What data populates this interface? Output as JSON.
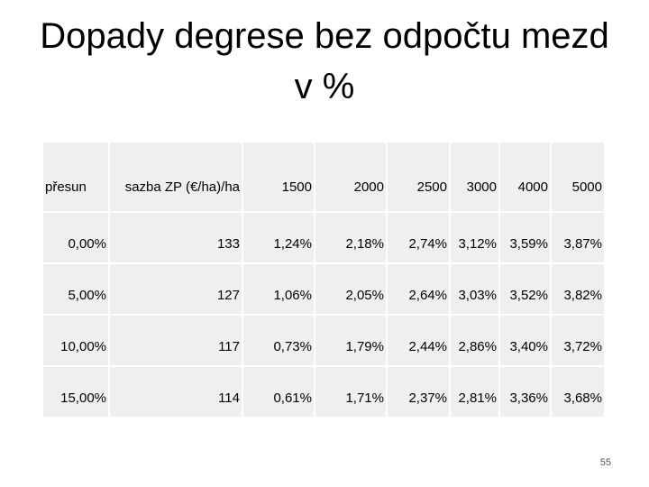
{
  "title": {
    "line1": "Dopady degrese bez odpočtu mezd",
    "line2": "v %"
  },
  "table": {
    "header": [
      "přesun",
      "sazba ZP (€/ha)/ha",
      "1500",
      "2000",
      "2500",
      "3000",
      "4000",
      "5000"
    ],
    "rows": [
      [
        "0,00%",
        "133",
        "1,24%",
        "2,18%",
        "2,74%",
        "3,12%",
        "3,59%",
        "3,87%"
      ],
      [
        "5,00%",
        "127",
        "1,06%",
        "2,05%",
        "2,64%",
        "3,03%",
        "3,52%",
        "3,82%"
      ],
      [
        "10,00%",
        "117",
        "0,73%",
        "1,79%",
        "2,44%",
        "2,86%",
        "3,40%",
        "3,72%"
      ],
      [
        "15,00%",
        "114",
        "0,61%",
        "1,71%",
        "2,37%",
        "2,81%",
        "3,36%",
        "3,68%"
      ]
    ]
  },
  "page_number": "55"
}
